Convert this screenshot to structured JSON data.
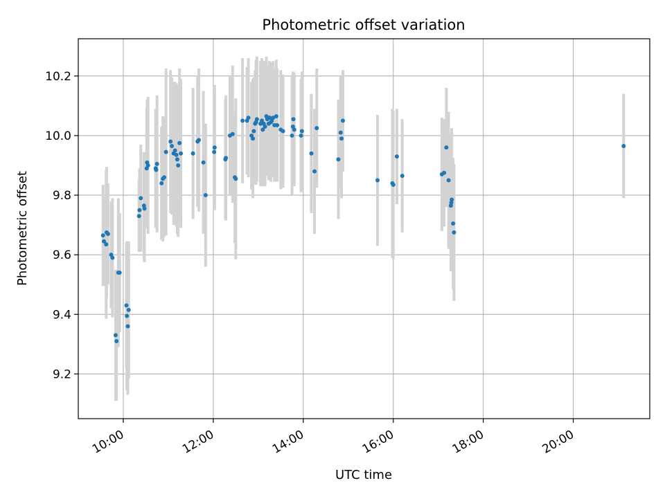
{
  "chart_data": {
    "type": "scatter",
    "title": "Photometric offset variation",
    "xlabel": "UTC time",
    "ylabel": "Photometric offset",
    "x_unit": "hours (UTC)",
    "xlim": [
      9.0,
      21.7
    ],
    "ylim": [
      9.05,
      10.325
    ],
    "grid": true,
    "legend": "none",
    "x_ticks": [
      {
        "value": 10,
        "label": "10:00"
      },
      {
        "value": 12,
        "label": "12:00"
      },
      {
        "value": 14,
        "label": "14:00"
      },
      {
        "value": 16,
        "label": "16:00"
      },
      {
        "value": 18,
        "label": "18:00"
      },
      {
        "value": 20,
        "label": "20:00"
      }
    ],
    "y_ticks": [
      {
        "value": 9.2,
        "label": "9.2"
      },
      {
        "value": 9.4,
        "label": "9.4"
      },
      {
        "value": 9.6,
        "label": "9.6"
      },
      {
        "value": 9.8,
        "label": "9.8"
      },
      {
        "value": 10.0,
        "label": "10.0"
      },
      {
        "value": 10.2,
        "label": "10.2"
      }
    ],
    "colors": {
      "point": "#1f77b4",
      "errorbar": "#d3d3d3",
      "grid": "#b0b0b0"
    },
    "series": [
      {
        "points": [
          [
            9.55,
            9.665,
            0.17
          ],
          [
            9.57,
            9.645,
            0.15
          ],
          [
            9.62,
            9.635,
            0.25
          ],
          [
            9.63,
            9.675,
            0.22
          ],
          [
            9.66,
            9.67,
            0.17
          ],
          [
            9.73,
            9.6,
            0.18
          ],
          [
            9.76,
            9.59,
            0.2
          ],
          [
            9.83,
            9.33,
            0.22
          ],
          [
            9.85,
            9.31,
            0.2
          ],
          [
            9.89,
            9.54,
            0.25
          ],
          [
            9.92,
            9.54,
            0.2
          ],
          [
            10.07,
            9.43,
            0.21
          ],
          [
            10.08,
            9.395,
            0.25
          ],
          [
            10.1,
            9.36,
            0.23
          ],
          [
            10.12,
            9.415,
            0.23
          ],
          [
            10.35,
            9.73,
            0.12
          ],
          [
            10.36,
            9.75,
            0.14
          ],
          [
            10.39,
            9.79,
            0.18
          ],
          [
            10.46,
            9.765,
            0.18
          ],
          [
            10.47,
            9.755,
            0.18
          ],
          [
            10.52,
            9.89,
            0.2
          ],
          [
            10.53,
            9.91,
            0.21
          ],
          [
            10.55,
            9.9,
            0.23
          ],
          [
            10.72,
            9.89,
            0.2
          ],
          [
            10.73,
            9.885,
            0.19
          ],
          [
            10.75,
            9.905,
            0.23
          ],
          [
            10.85,
            9.84,
            0.19
          ],
          [
            10.88,
            9.855,
            0.21
          ],
          [
            10.91,
            9.86,
            0.2
          ],
          [
            10.95,
            9.945,
            0.28
          ],
          [
            11.05,
            9.98,
            0.24
          ],
          [
            11.08,
            9.965,
            0.23
          ],
          [
            11.12,
            9.94,
            0.24
          ],
          [
            11.15,
            9.95,
            0.23
          ],
          [
            11.18,
            9.935,
            0.24
          ],
          [
            11.2,
            9.92,
            0.25
          ],
          [
            11.22,
            9.9,
            0.24
          ],
          [
            11.25,
            9.975,
            0.25
          ],
          [
            11.28,
            9.94,
            0.25
          ],
          [
            11.55,
            9.94,
            0.22
          ],
          [
            11.65,
            9.98,
            0.22
          ],
          [
            11.68,
            9.985,
            0.24
          ],
          [
            11.78,
            9.91,
            0.24
          ],
          [
            11.83,
            9.8,
            0.24
          ],
          [
            12.02,
            9.945,
            0.19
          ],
          [
            12.03,
            9.96,
            0.21
          ],
          [
            12.27,
            9.92,
            0.2
          ],
          [
            12.28,
            9.925,
            0.21
          ],
          [
            12.37,
            10.0,
            0.2
          ],
          [
            12.43,
            10.005,
            0.23
          ],
          [
            12.48,
            9.86,
            0.22
          ],
          [
            12.5,
            9.855,
            0.27
          ],
          [
            12.65,
            10.05,
            0.21
          ],
          [
            12.75,
            10.05,
            0.18
          ],
          [
            12.78,
            10.06,
            0.2
          ],
          [
            12.85,
            10.0,
            0.18
          ],
          [
            12.88,
            9.99,
            0.2
          ],
          [
            12.9,
            10.015,
            0.18
          ],
          [
            12.93,
            10.04,
            0.18
          ],
          [
            12.95,
            10.045,
            0.21
          ],
          [
            12.97,
            10.055,
            0.21
          ],
          [
            13.05,
            10.04,
            0.21
          ],
          [
            13.08,
            10.05,
            0.21
          ],
          [
            13.1,
            10.02,
            0.19
          ],
          [
            13.12,
            10.04,
            0.21
          ],
          [
            13.15,
            10.03,
            0.2
          ],
          [
            13.18,
            10.065,
            0.2
          ],
          [
            13.2,
            10.055,
            0.18
          ],
          [
            13.23,
            10.04,
            0.19
          ],
          [
            13.25,
            10.06,
            0.19
          ],
          [
            13.28,
            10.045,
            0.2
          ],
          [
            13.3,
            10.05,
            0.19
          ],
          [
            13.33,
            10.06,
            0.19
          ],
          [
            13.36,
            10.035,
            0.19
          ],
          [
            13.4,
            10.065,
            0.19
          ],
          [
            13.42,
            10.035,
            0.19
          ],
          [
            13.5,
            10.02,
            0.2
          ],
          [
            13.55,
            10.015,
            0.19
          ],
          [
            13.75,
            10.0,
            0.2
          ],
          [
            13.77,
            10.03,
            0.18
          ],
          [
            13.78,
            10.055,
            0.16
          ],
          [
            13.8,
            10.02,
            0.19
          ],
          [
            13.95,
            10.0,
            0.19
          ],
          [
            13.97,
            10.015,
            0.2
          ],
          [
            14.18,
            9.94,
            0.2
          ],
          [
            14.25,
            9.88,
            0.21
          ],
          [
            14.3,
            10.025,
            0.2
          ],
          [
            14.78,
            9.92,
            0.2
          ],
          [
            14.83,
            10.01,
            0.19
          ],
          [
            14.85,
            9.99,
            0.2
          ],
          [
            14.88,
            10.05,
            0.17
          ],
          [
            15.65,
            9.85,
            0.22
          ],
          [
            15.98,
            9.84,
            0.25
          ],
          [
            16.0,
            9.835,
            0.25
          ],
          [
            16.08,
            9.93,
            0.16
          ],
          [
            16.2,
            9.865,
            0.19
          ],
          [
            17.08,
            9.87,
            0.19
          ],
          [
            17.13,
            9.875,
            0.18
          ],
          [
            17.18,
            9.96,
            0.2
          ],
          [
            17.23,
            9.85,
            0.23
          ],
          [
            17.28,
            9.765,
            0.22
          ],
          [
            17.29,
            9.775,
            0.23
          ],
          [
            17.3,
            9.785,
            0.24
          ],
          [
            17.33,
            9.705,
            0.22
          ],
          [
            17.35,
            9.675,
            0.23
          ],
          [
            21.12,
            9.965,
            0.175
          ]
        ]
      }
    ]
  }
}
